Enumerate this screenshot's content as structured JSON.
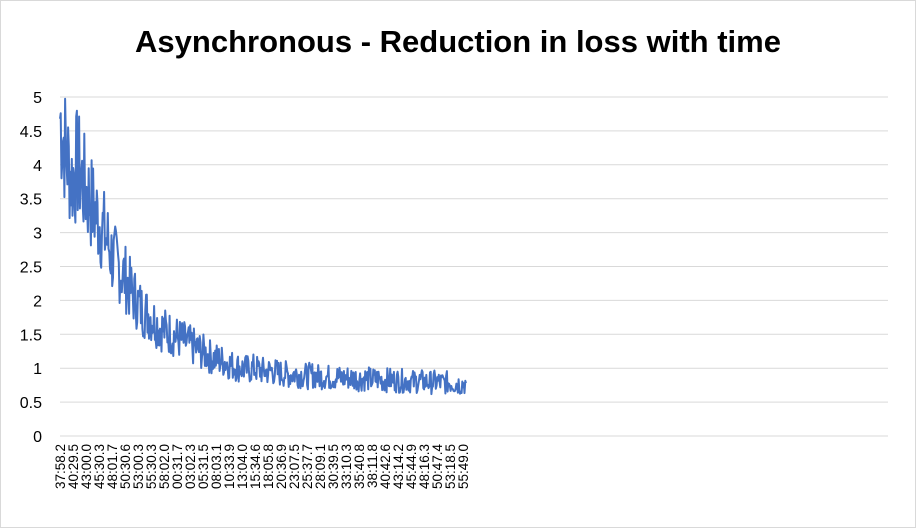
{
  "chart_data": {
    "type": "line",
    "title": "Asynchronous - Reduction in loss with time",
    "xlabel": "",
    "ylabel": "",
    "ylim": [
      0,
      5
    ],
    "y_ticks": [
      "0",
      "0.5",
      "1",
      "1.5",
      "2",
      "2.5",
      "3",
      "3.5",
      "4",
      "4.5",
      "5"
    ],
    "grid": "horizontal",
    "legend": "none",
    "line_color": "#4472C4",
    "x_tick_labels": [
      "37:58.2",
      "40:29.5",
      "43:00.0",
      "45:30.3",
      "48:01.7",
      "50:30.6",
      "53:00.3",
      "55:30.3",
      "58:02.0",
      "00:31.7",
      "03:02.3",
      "05:31.5",
      "08:03.1",
      "10:33.9",
      "13:04.0",
      "15:34.6",
      "18:05.8",
      "20:36.9",
      "23:07.5",
      "25:37.7",
      "28:09.1",
      "30:39.5",
      "33:10.3",
      "35:40.8",
      "38:11.8",
      "40:42.6",
      "43:14.2",
      "45:44.9",
      "48:16.3",
      "50:47.4",
      "53:18.5",
      "55:49.0"
    ],
    "series": [
      {
        "values": [
          4.7,
          4.2,
          3.8,
          4.0,
          3.7,
          3.5,
          3.3,
          3.1,
          2.9,
          2.6,
          2.5,
          2.35,
          2.15,
          2.0,
          1.85,
          1.8,
          1.7,
          1.6,
          1.55,
          1.5,
          1.45,
          1.4,
          1.35,
          1.3,
          1.25,
          1.2,
          1.15,
          1.12,
          1.1,
          1.05,
          1.02,
          1.0,
          0.98,
          1.0,
          0.97,
          0.95,
          0.96,
          0.93,
          0.92,
          0.9,
          0.92,
          0.9,
          0.88,
          0.9,
          0.87,
          0.88,
          0.86,
          0.87,
          0.85,
          0.86,
          0.85,
          0.84,
          0.85,
          0.83,
          0.84,
          0.82,
          0.83,
          0.82,
          0.81,
          0.82,
          0.8,
          0.81,
          0.8,
          0.79,
          0.8,
          0.78,
          0.79,
          0.78,
          0.77,
          0.78
        ]
      }
    ]
  }
}
